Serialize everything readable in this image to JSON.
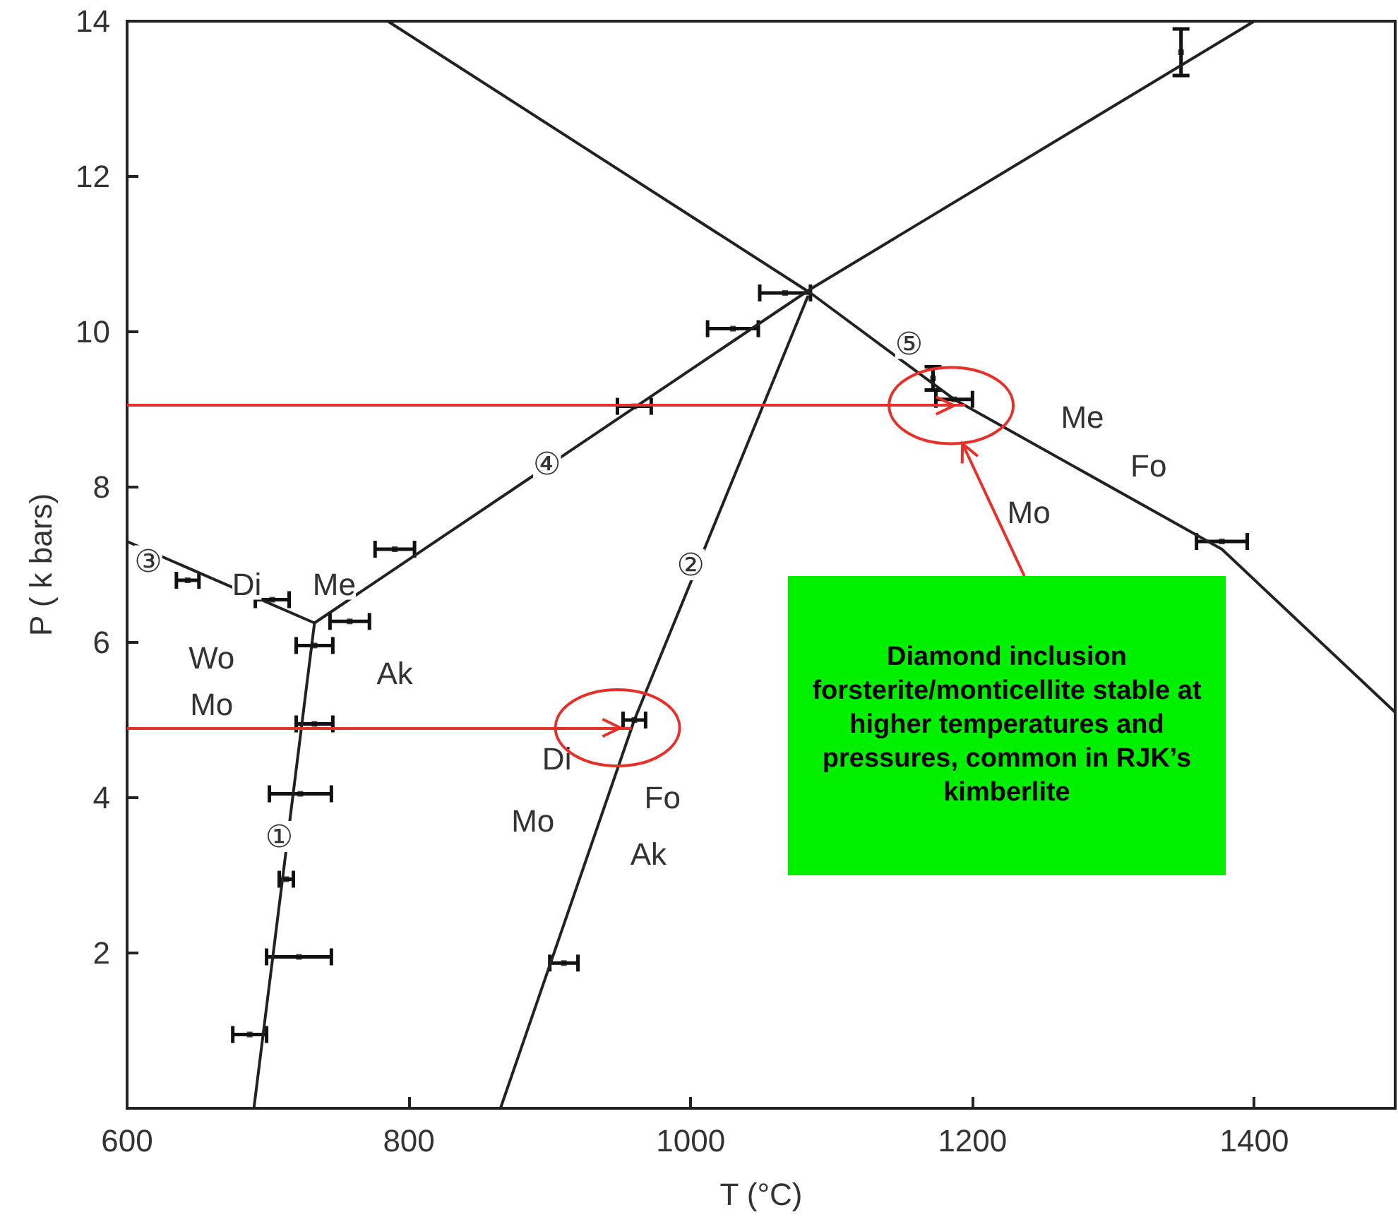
{
  "chart_data": {
    "type": "line",
    "xlabel": "T (°C)",
    "ylabel": "P ( k bars)",
    "xlim": [
      600,
      1500
    ],
    "xticks": [
      600,
      800,
      1000,
      1200,
      1400
    ],
    "ylim": [
      0,
      14
    ],
    "yticks": [
      {
        "value": 0,
        "label": null
      },
      2,
      4,
      6,
      8,
      10,
      12,
      14
    ],
    "grid": false,
    "marker": "none",
    "line_style": "solid",
    "series": [
      {
        "color": "#222222",
        "x": [
          690,
          733
        ],
        "values": [
          0,
          6.25
        ]
      },
      {
        "color": "#222222",
        "x": [
          600,
          733
        ],
        "values": [
          7.3,
          6.25
        ]
      },
      {
        "color": "#222222",
        "x": [
          733,
          1085,
          1400
        ],
        "values": [
          6.25,
          10.55,
          14
        ]
      },
      {
        "color": "#222222",
        "x": [
          865,
          960,
          1083
        ],
        "values": [
          0,
          5.0,
          10.45
        ]
      },
      {
        "color": "#222222",
        "x": [
          785,
          1085,
          1187,
          1377,
          1500
        ],
        "values": [
          14,
          10.5,
          9.13,
          7.2,
          5.1
        ]
      },
      {
        "type": "scatter",
        "marker": "square",
        "color": "#111111",
        "x": [
          687,
          722,
          713,
          723,
          733,
          733,
          703,
          643,
          758,
          790,
          960,
          1030,
          1067,
          910,
          960,
          1348,
          1172,
          1187,
          1377
        ],
        "values": [
          0.95,
          1.95,
          2.95,
          4.05,
          4.95,
          5.96,
          6.55,
          6.8,
          6.27,
          7.2,
          9.04,
          10.04,
          10.5,
          1.87,
          5.0,
          13.6,
          9.4,
          9.13,
          7.3
        ],
        "xerrors": [
          12,
          23,
          5,
          22,
          13,
          13,
          12,
          8,
          14,
          14,
          12,
          18,
          18,
          10,
          8,
          null,
          null,
          13,
          18
        ],
        "errors": [
          null,
          null,
          null,
          null,
          null,
          null,
          null,
          null,
          null,
          null,
          null,
          null,
          null,
          null,
          null,
          0.3,
          0.15,
          null,
          null
        ]
      }
    ],
    "ref_lines": [
      {
        "axis": "y",
        "value": 9.05,
        "color": "#e8302a"
      },
      {
        "axis": "y",
        "value": 4.9,
        "color": "#e8302a"
      }
    ],
    "annotations": [
      "Diamond inclusion forsterite/monticellite stable at higher temperatures and pressures, common in RJK’s kimberlite",
      {
        "text": "③",
        "x": 615,
        "y": 7.05
      },
      {
        "text": "①",
        "x": 708,
        "y": 3.5
      },
      {
        "text": "②",
        "x": 1000,
        "y": 7.0
      },
      {
        "text": "④",
        "x": 898,
        "y": 8.3
      },
      {
        "text": "⑤",
        "x": 1155,
        "y": 9.85
      },
      {
        "text": "Di",
        "x": 685,
        "y": 6.75
      },
      {
        "text": "Me",
        "x": 747,
        "y": 6.75
      },
      {
        "text": "Wo",
        "x": 660,
        "y": 5.8
      },
      {
        "text": "Mo",
        "x": 660,
        "y": 5.2
      },
      {
        "text": "Ak",
        "x": 790,
        "y": 5.6
      },
      {
        "text": "Di",
        "x": 905,
        "y": 4.5
      },
      {
        "text": "Mo",
        "x": 888,
        "y": 3.7
      },
      {
        "text": "Fo",
        "x": 980,
        "y": 4.0
      },
      {
        "text": "Ak",
        "x": 970,
        "y": 3.27
      },
      {
        "text": "Me",
        "x": 1278,
        "y": 8.9
      },
      {
        "text": "Fo",
        "x": 1325,
        "y": 8.27
      },
      {
        "text": "Mo",
        "x": 1240,
        "y": 7.67
      }
    ]
  }
}
